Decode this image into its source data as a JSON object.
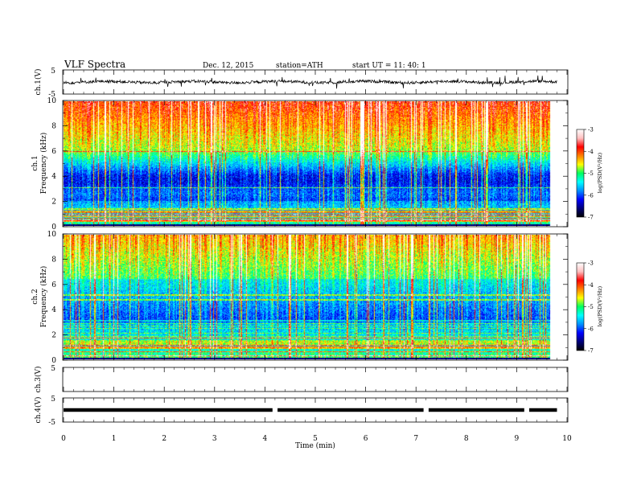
{
  "header": {
    "title": "VLF  Spectra",
    "date": "Dec. 12, 2015",
    "station": "station=ATH",
    "start": "start  UT  =   11: 40: 1"
  },
  "chart_data": {
    "type": "spectrogram",
    "x_axis": {
      "label": "Time  (min)",
      "range": [
        0,
        10
      ],
      "ticks": [
        "0",
        "1",
        "2",
        "3",
        "4",
        "5",
        "6",
        "7",
        "8",
        "9",
        "10"
      ]
    },
    "panels": [
      {
        "id": "ch1-wave",
        "type": "line",
        "ylabel": "ch.1(V)",
        "ylim": [
          -5,
          5
        ],
        "ticks": [
          "5",
          "-5"
        ],
        "color": "#000000"
      },
      {
        "id": "ch1-spec",
        "type": "heatmap",
        "ylabel": "ch.1\nFrequency  (kHz)",
        "ylabel_line1": "ch.1",
        "ylabel_line2": "Frequency  (kHz)",
        "ylim": [
          0,
          10
        ],
        "ticks": [
          "0",
          "2",
          "4",
          "6",
          "8",
          "10"
        ],
        "data_end_min": 9.8
      },
      {
        "id": "ch2-spec",
        "type": "heatmap",
        "ylabel_line1": "ch.2",
        "ylabel_line2": "Frequency  (kHz)",
        "ylim": [
          0,
          10
        ],
        "ticks": [
          "0",
          "2",
          "4",
          "6",
          "8",
          "10"
        ],
        "data_end_min": 9.8
      },
      {
        "id": "ch3-wave",
        "type": "line",
        "ylabel": "ch.3(V)",
        "ylim": [
          -5,
          5
        ],
        "ticks": [
          "5"
        ]
      },
      {
        "id": "ch4-wave",
        "type": "line",
        "ylabel": "ch.4(V)",
        "ylim": [
          -5,
          5
        ],
        "ticks": [
          "5",
          "-5"
        ],
        "gaps_min": [
          4.2,
          7.2,
          9.2
        ]
      }
    ],
    "colorbar": {
      "label": "log(PSD(V²/Hz)",
      "range": [
        -7,
        -3
      ],
      "ticks": [
        "-3",
        "-4",
        "-5",
        "-6",
        "-7"
      ],
      "colors": [
        "#000000",
        "#00007a",
        "#0000ff",
        "#0090ff",
        "#00ffff",
        "#00ff60",
        "#ffff00",
        "#ff8000",
        "#ff0000",
        "#ffc0c0",
        "#ffffff"
      ]
    }
  }
}
